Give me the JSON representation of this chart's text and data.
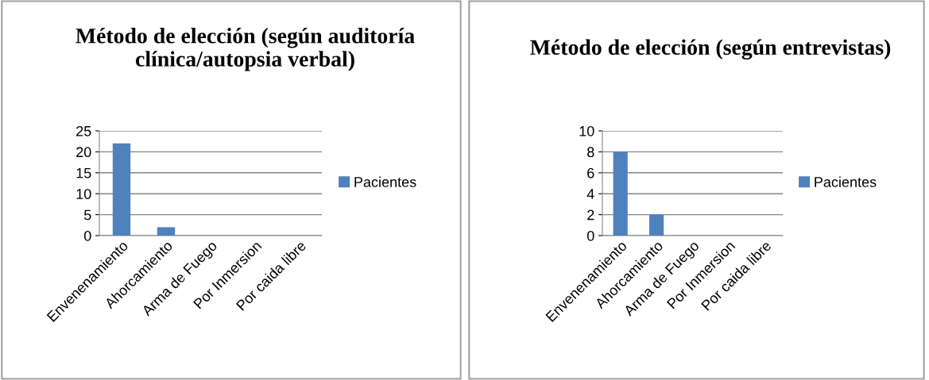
{
  "chart_data": [
    {
      "type": "bar",
      "title": "Método de elección (según auditoría clínica/autopsia verbal)",
      "categories": [
        "Envenenamiento",
        "Ahorcamiento",
        "Arma de Fuego",
        "Por Inmersion",
        "Por caida libre"
      ],
      "series": [
        {
          "name": "Pacientes",
          "color": "#4f81bd",
          "values": [
            22,
            2,
            0,
            0,
            0
          ]
        }
      ],
      "ylim": [
        0,
        25
      ],
      "yticks": [
        0,
        5,
        10,
        15,
        20,
        25
      ],
      "grid": "y",
      "legend": "right"
    },
    {
      "type": "bar",
      "title": "Método de elección (según entrevistas)",
      "categories": [
        "Envenenamiento",
        "Ahorcamiento",
        "Arma de Fuego",
        "Por Inmersion",
        "Por caida libre"
      ],
      "series": [
        {
          "name": "Pacientes",
          "color": "#4f81bd",
          "values": [
            8,
            2,
            0,
            0,
            0
          ]
        }
      ],
      "ylim": [
        0,
        10
      ],
      "yticks": [
        0,
        2,
        4,
        6,
        8,
        10
      ],
      "grid": "y",
      "legend": "right"
    }
  ]
}
